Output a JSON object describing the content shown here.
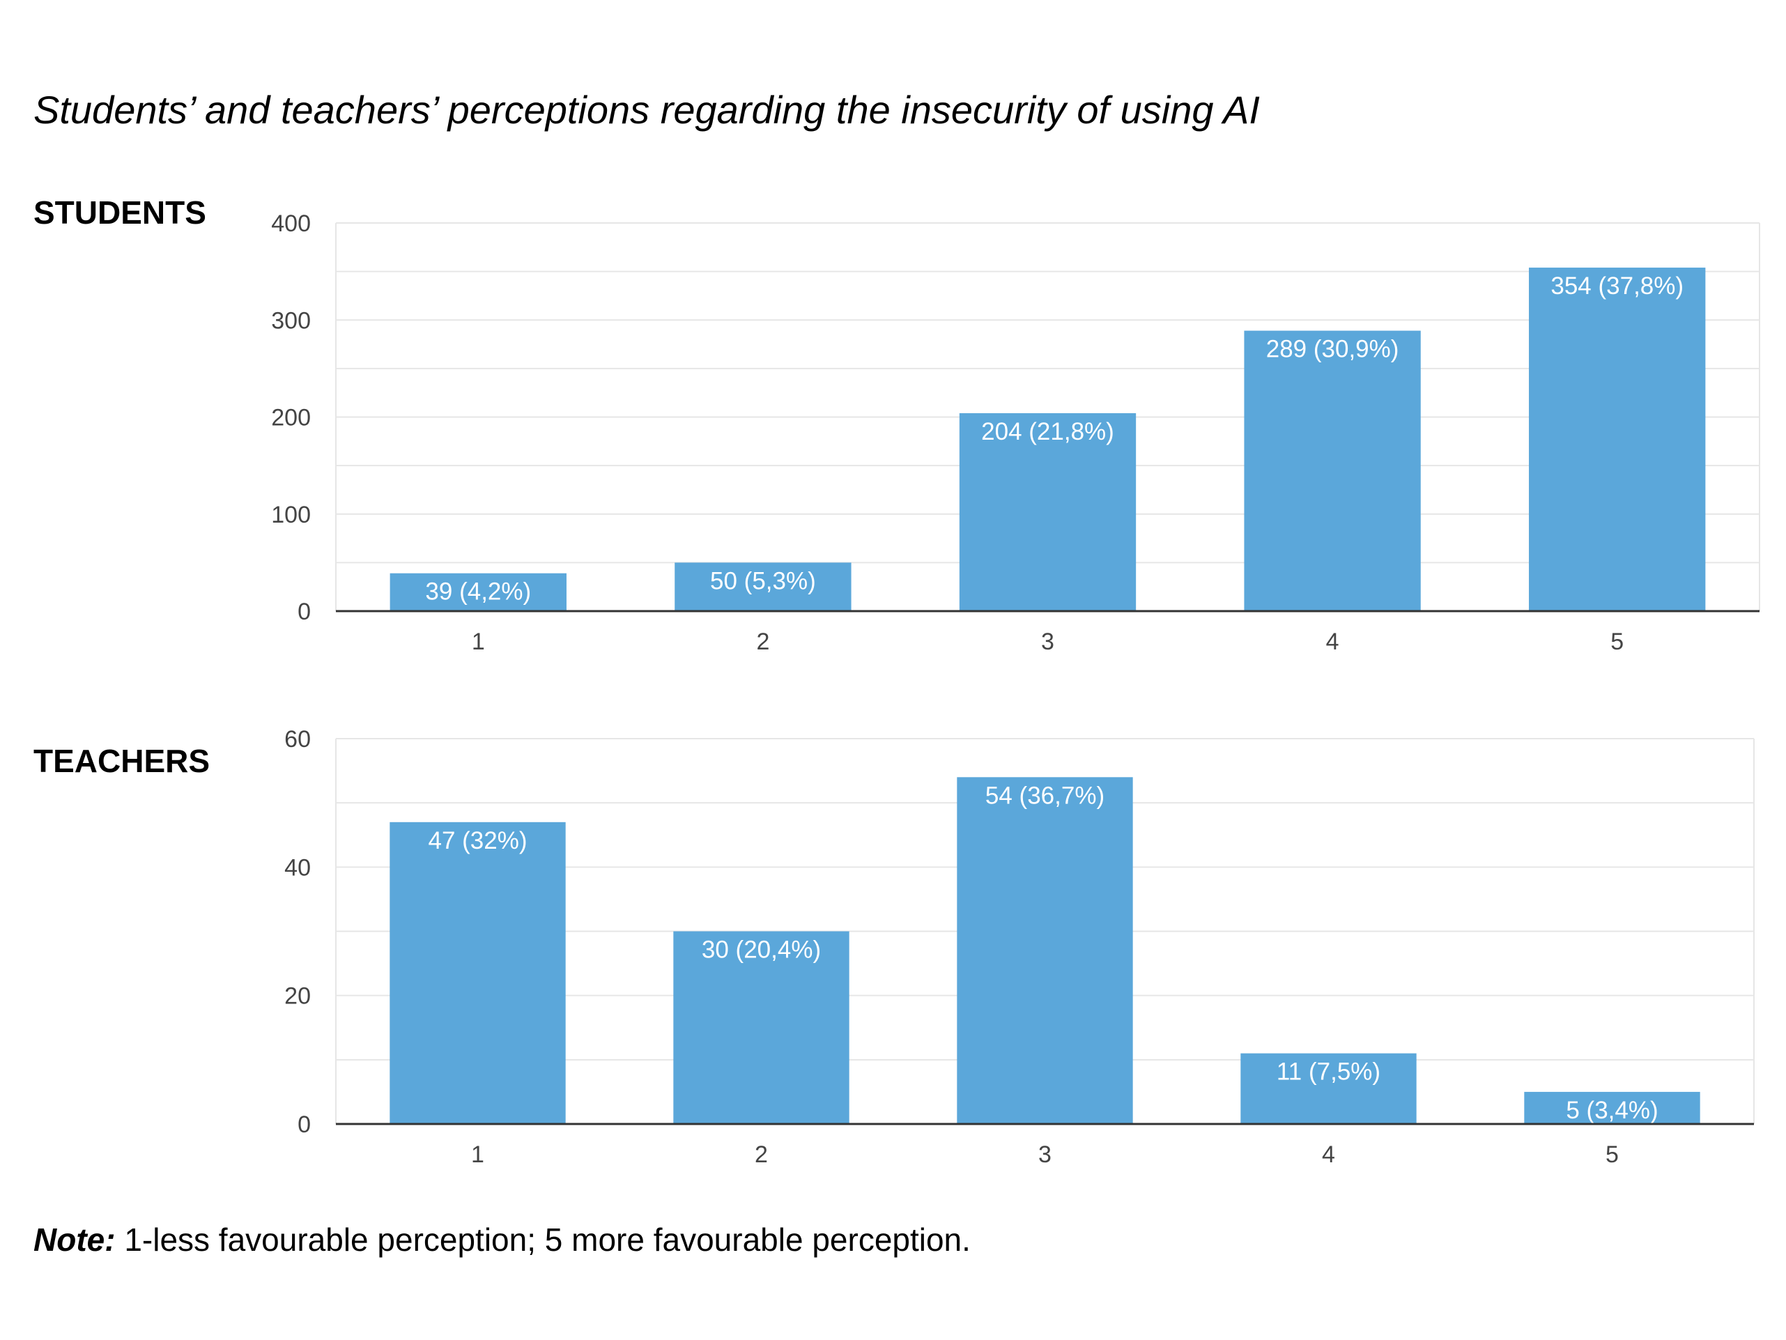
{
  "title": "Students’ and teachers’ perceptions regarding the insecurity of using AI",
  "note": {
    "label": "Note:",
    "text": " 1-less favourable perception; 5 more favourable perception."
  },
  "colors": {
    "bar": "#5ba7da",
    "grid": "#e6e6e6",
    "axis": "#333333",
    "frame": "#e6e6e6"
  },
  "chart_data": [
    {
      "type": "bar",
      "panel_label": "STUDENTS",
      "categories": [
        "1",
        "2",
        "3",
        "4",
        "5"
      ],
      "values": [
        39,
        50,
        204,
        289,
        354
      ],
      "data_labels": [
        "39 (4,2%)",
        "50 (5,3%)",
        "204 (21,8%)",
        "289 (30,9%)",
        "354 (37,8%)"
      ],
      "ylim": [
        0,
        400
      ],
      "yticks": [
        0,
        100,
        200,
        300,
        400
      ],
      "minor_grid_step": 50,
      "grid": true
    },
    {
      "type": "bar",
      "panel_label": "TEACHERS",
      "categories": [
        "1",
        "2",
        "3",
        "4",
        "5"
      ],
      "values": [
        47,
        30,
        54,
        11,
        5
      ],
      "data_labels": [
        "47 (32%)",
        "30 (20,4%)",
        "54 (36,7%)",
        "11 (7,5%)",
        "5 (3,4%)"
      ],
      "ylim": [
        0,
        60
      ],
      "yticks": [
        0,
        20,
        40,
        60
      ],
      "minor_grid_step": 10,
      "grid": true
    }
  ]
}
